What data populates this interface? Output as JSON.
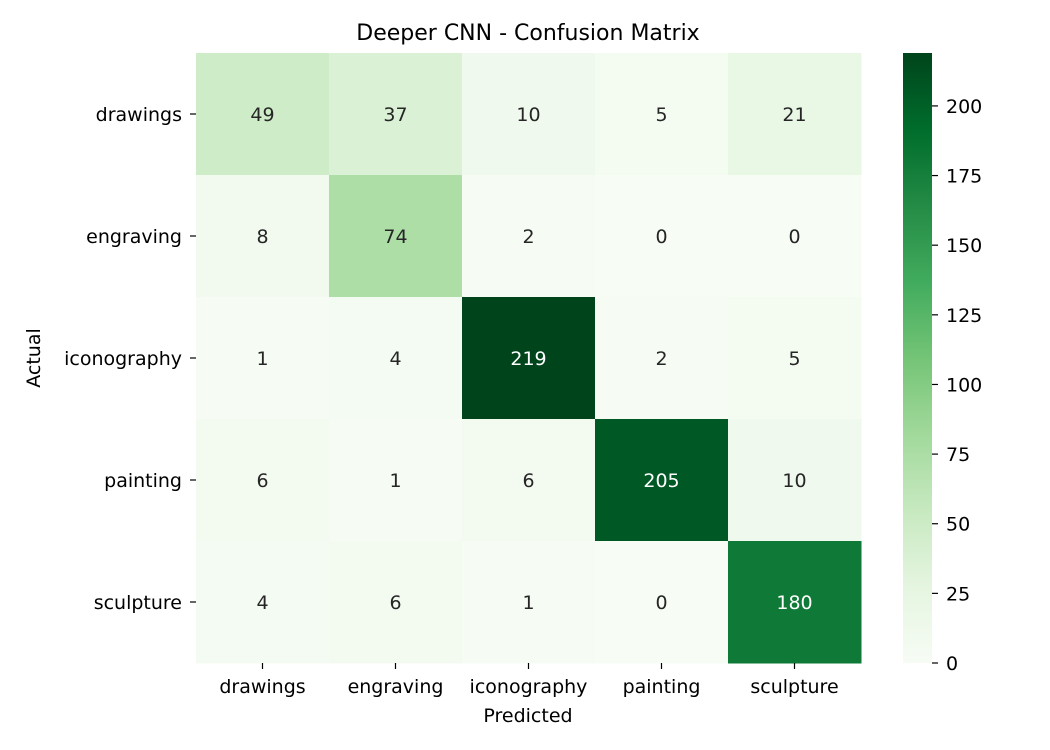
{
  "chart_data": {
    "type": "heatmap",
    "title": "Deeper CNN - Confusion Matrix",
    "xlabel": "Predicted",
    "ylabel": "Actual",
    "x_categories": [
      "drawings",
      "engraving",
      "iconography",
      "painting",
      "sculpture"
    ],
    "y_categories": [
      "drawings",
      "engraving",
      "iconography",
      "painting",
      "sculpture"
    ],
    "values": [
      [
        49,
        37,
        10,
        5,
        21
      ],
      [
        8,
        74,
        2,
        0,
        0
      ],
      [
        1,
        4,
        219,
        2,
        5
      ],
      [
        6,
        1,
        6,
        205,
        10
      ],
      [
        4,
        6,
        1,
        0,
        180
      ]
    ],
    "colorbar": {
      "min": 0,
      "max": 219,
      "ticks": [
        0,
        25,
        50,
        75,
        100,
        125,
        150,
        175,
        200
      ],
      "colormap": "Greens",
      "color_low": "#f7fcf5",
      "color_high": "#00441b"
    },
    "annotation_colors": {
      "dark": "#262626",
      "light": "#ffffff"
    }
  }
}
